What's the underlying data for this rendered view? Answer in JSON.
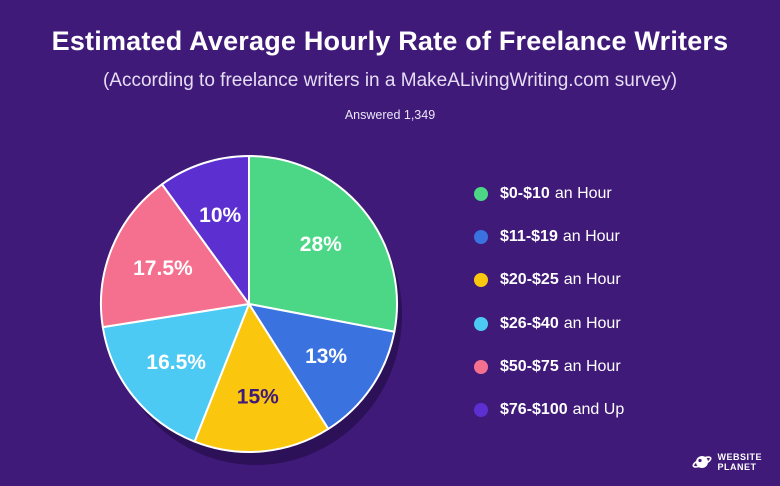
{
  "header": {
    "title": "Estimated Average Hourly Rate of Freelance Writers",
    "subtitle": "(According to freelance writers in a MakeALivingWriting.com survey)",
    "answered": "Answered 1,349"
  },
  "chart_data": {
    "type": "pie",
    "title": "Estimated Average Hourly Rate of Freelance Writers",
    "subtitle": "(According to freelance writers in a MakeALivingWriting.com survey)",
    "legend_position": "right",
    "slices": [
      {
        "range": "$0-$10",
        "suffix": "an Hour",
        "value": 28,
        "label": "28%",
        "color": "#4cd787"
      },
      {
        "range": "$11-$19",
        "suffix": "an Hour",
        "value": 13,
        "label": "13%",
        "color": "#3a72e0"
      },
      {
        "range": "$20-$25",
        "suffix": "an Hour",
        "value": 15,
        "label": "15%",
        "color": "#fbc70e"
      },
      {
        "range": "$26-$40",
        "suffix": "an Hour",
        "value": 16.5,
        "label": "16.5%",
        "color": "#4ccaf3"
      },
      {
        "range": "$50-$75",
        "suffix": "an Hour",
        "value": 17.5,
        "label": "17.5%",
        "color": "#f5708f"
      },
      {
        "range": "$76-$100",
        "suffix": "and Up",
        "value": 10,
        "label": "10%",
        "color": "#5b2fd0"
      }
    ]
  },
  "brand": {
    "line1": "WEBSITE",
    "line2": "PLANET",
    "icon": "planet-icon"
  }
}
